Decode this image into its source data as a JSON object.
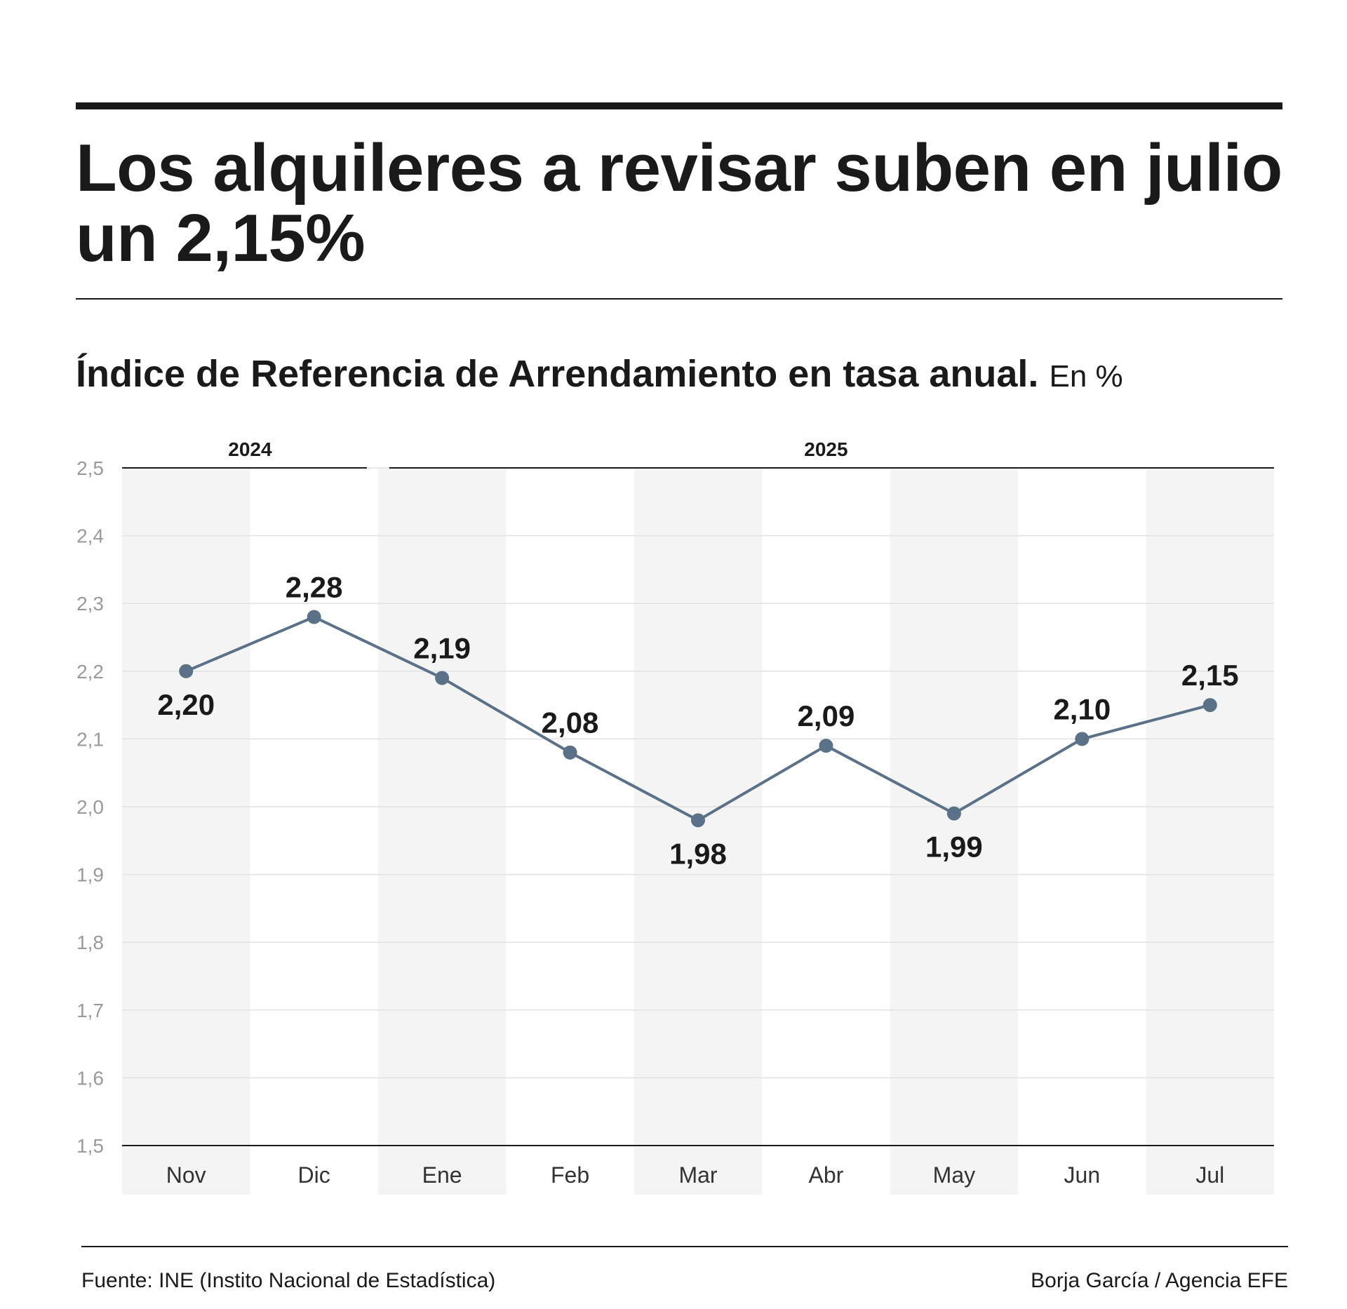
{
  "header": {
    "title": "Los alquileres a revisar suben en julio un 2,15%",
    "subtitle": "Índice de Referencia de Arrendamiento en tasa anual.",
    "unit": "En %"
  },
  "footer": {
    "source": "Fuente: INE (Instito Nacional de Estadística)",
    "credit": "Borja García / Agencia EFE"
  },
  "colors": {
    "line": "#5a7188",
    "band": "#f4f4f4",
    "grid": "#e2e2e2",
    "axis": "#1a1a1a",
    "tick": "#9a9a9a"
  },
  "chart_data": {
    "type": "line",
    "categories": [
      "Nov",
      "Dic",
      "Ene",
      "Feb",
      "Mar",
      "Abr",
      "May",
      "Jun",
      "Jul"
    ],
    "series": [
      {
        "values": [
          2.2,
          2.28,
          2.19,
          2.08,
          1.98,
          2.09,
          1.99,
          2.1,
          2.15
        ],
        "labels": [
          "2,20",
          "2,28",
          "2,19",
          "2,08",
          "1,98",
          "2,09",
          "1,99",
          "2,10",
          "2,15"
        ]
      }
    ],
    "ylim": [
      1.5,
      2.5
    ],
    "yticks": [
      1.5,
      1.6,
      1.7,
      1.8,
      1.9,
      2.0,
      2.1,
      2.2,
      2.3,
      2.4,
      2.5
    ],
    "ytick_labels": [
      "1,5",
      "1,6",
      "1,7",
      "1,8",
      "1,9",
      "2,0",
      "2,1",
      "2,2",
      "2,3",
      "2,4",
      "2,5"
    ],
    "year_groups": [
      {
        "label": "2024",
        "first": 0,
        "last": 1
      },
      {
        "label": "2025",
        "first": 2,
        "last": 8
      }
    ],
    "grid": true,
    "legend": "none"
  }
}
